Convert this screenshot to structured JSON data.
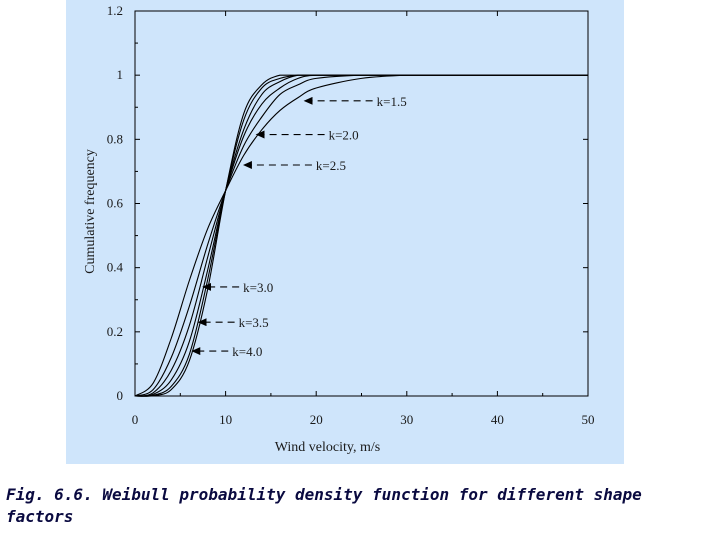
{
  "caption": "Fig. 6.6. Weibull probability density function for different shape factors",
  "colors": {
    "panel": "#cfe5fb",
    "line": "#000000",
    "caption": "#0a0a40"
  },
  "chart_data": {
    "type": "line",
    "title": "",
    "xlabel": "Wind velocity, m/s",
    "ylabel": "Cumulative frequency",
    "xlim": [
      0,
      50
    ],
    "ylim": [
      0,
      1.2
    ],
    "xticks": [
      "0",
      "10",
      "20",
      "30",
      "40",
      "50"
    ],
    "yticks": [
      "0",
      "0.2",
      "0.4",
      "0.6",
      "0.8",
      "1",
      "1.2"
    ],
    "grid": false,
    "x": [
      0,
      2,
      4,
      6,
      8,
      10,
      12,
      14,
      16,
      18,
      20,
      25,
      30,
      35,
      40,
      45,
      50
    ],
    "series": [
      {
        "name": "k=1.5",
        "values": [
          0,
          0.04,
          0.18,
          0.36,
          0.52,
          0.64,
          0.75,
          0.83,
          0.89,
          0.93,
          0.96,
          0.99,
          1.0,
          1.0,
          1.0,
          1.0,
          1.0
        ]
      },
      {
        "name": "k=2.0",
        "values": [
          0,
          0.02,
          0.12,
          0.28,
          0.47,
          0.64,
          0.78,
          0.87,
          0.94,
          0.97,
          0.99,
          1.0,
          1.0,
          1.0,
          1.0,
          1.0,
          1.0
        ]
      },
      {
        "name": "k=2.5",
        "values": [
          0,
          0.01,
          0.08,
          0.22,
          0.43,
          0.64,
          0.81,
          0.91,
          0.96,
          0.99,
          1.0,
          1.0,
          1.0,
          1.0,
          1.0,
          1.0,
          1.0
        ]
      },
      {
        "name": "k=3.0",
        "values": [
          0,
          0.005,
          0.05,
          0.17,
          0.39,
          0.64,
          0.83,
          0.94,
          0.98,
          1.0,
          1.0,
          1.0,
          1.0,
          1.0,
          1.0,
          1.0,
          1.0
        ]
      },
      {
        "name": "k=3.5",
        "values": [
          0,
          0.002,
          0.03,
          0.13,
          0.36,
          0.64,
          0.86,
          0.96,
          0.99,
          1.0,
          1.0,
          1.0,
          1.0,
          1.0,
          1.0,
          1.0,
          1.0
        ]
      },
      {
        "name": "k=4.0",
        "values": [
          0,
          0.001,
          0.02,
          0.11,
          0.33,
          0.64,
          0.88,
          0.97,
          1.0,
          1.0,
          1.0,
          1.0,
          1.0,
          1.0,
          1.0,
          1.0,
          1.0
        ]
      }
    ],
    "annotations": [
      {
        "text": "k=1.5",
        "series": "k=1.5",
        "x": 18.5,
        "y": 0.92
      },
      {
        "text": "k=2.0",
        "series": "k=2.0",
        "x": 13.2,
        "y": 0.815
      },
      {
        "text": "k=2.5",
        "series": "k=2.5",
        "x": 11.8,
        "y": 0.72
      },
      {
        "text": "k=3.0",
        "series": "k=3.0",
        "x": 7.3,
        "y": 0.34
      },
      {
        "text": "k=3.5",
        "series": "k=3.5",
        "x": 6.8,
        "y": 0.23
      },
      {
        "text": "k=4.0",
        "series": "k=4.0",
        "x": 6.1,
        "y": 0.14
      }
    ]
  }
}
